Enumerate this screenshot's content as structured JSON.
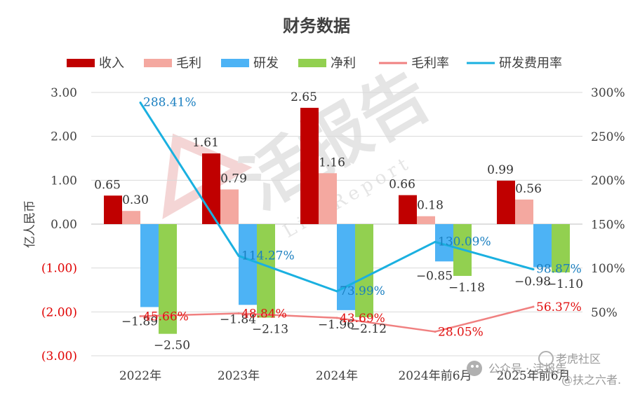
{
  "chart_data": {
    "type": "bar",
    "title": "财务数据",
    "categories": [
      "2022年",
      "2023年",
      "2024年",
      "2024年前6月",
      "2025年前6月"
    ],
    "ylabel": "亿人民币",
    "ylim": [
      -3,
      3
    ],
    "y_ticks": [
      "3.00",
      "2.00",
      "1.00",
      "0.00",
      "(1.00)",
      "(2.00)",
      "(3.00)"
    ],
    "y2lim": [
      0,
      300
    ],
    "y2_ticks": [
      "300%",
      "250%",
      "200%",
      "150%",
      "100%",
      "50%"
    ],
    "legend_position": "top",
    "series": [
      {
        "name": "收入",
        "kind": "bar",
        "color": "#c00000",
        "values": [
          0.65,
          1.61,
          2.65,
          0.66,
          0.99
        ],
        "labels": [
          "0.65",
          "1.61",
          "2.65",
          "0.66",
          "0.99"
        ]
      },
      {
        "name": "毛利",
        "kind": "bar",
        "color": "#f4a8a0",
        "values": [
          0.3,
          0.79,
          1.16,
          0.18,
          0.56
        ],
        "labels": [
          "0.30",
          "0.79",
          "1.16",
          "0.18",
          "0.56"
        ]
      },
      {
        "name": "研发",
        "kind": "bar",
        "color": "#4db3f5",
        "values": [
          -1.89,
          -1.84,
          -1.96,
          -0.85,
          -0.98
        ],
        "labels": [
          "−1.89",
          "−1.84",
          "−1.96",
          "−0.85",
          "−0.98"
        ]
      },
      {
        "name": "净利",
        "kind": "bar",
        "color": "#92d050",
        "values": [
          -2.5,
          -2.13,
          -2.12,
          -1.18,
          -1.1
        ],
        "labels": [
          "−2.50",
          "−2.13",
          "−2.12",
          "−1.18",
          "−1.10"
        ]
      },
      {
        "name": "毛利率",
        "kind": "line",
        "axis": "right",
        "color": "#f08080",
        "values": [
          45.66,
          48.84,
          43.69,
          28.05,
          56.37
        ],
        "labels": [
          "45.66%",
          "48.84%",
          "43.69%",
          "28.05%",
          "56.37%"
        ]
      },
      {
        "name": "研发费用率",
        "kind": "line",
        "axis": "right",
        "color": "#1ab0e0",
        "values": [
          288.41,
          114.27,
          73.99,
          130.09,
          98.87
        ],
        "labels": [
          "288.41%",
          "114.27%",
          "73.99%",
          "130.09%",
          "98.87%"
        ]
      }
    ],
    "colors": {
      "negative_tick": "#e00000",
      "positive_tick": "#404040",
      "grid": "#d9d9d9"
    }
  },
  "watermark": {
    "logo_text": "活报告",
    "logo_sub": "LiveReport",
    "wechat_label": "公众号 · 活报告",
    "source_label": "老虎社区",
    "author_label": "@扶之六者."
  }
}
